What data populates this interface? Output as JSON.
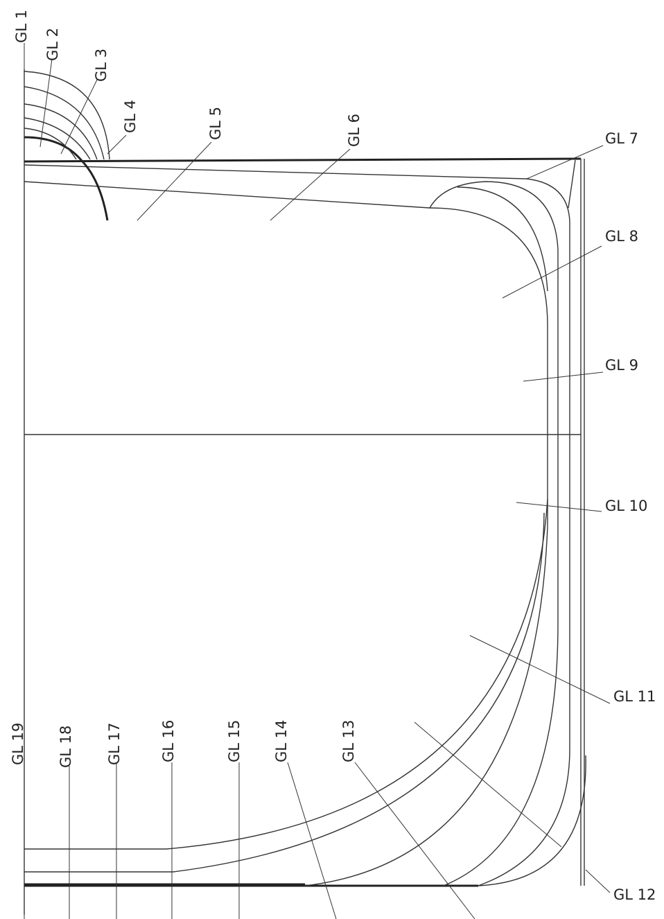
{
  "labels": [
    "GL 1",
    "GL 2",
    "GL 3",
    "GL 4",
    "GL 5",
    "GL 6",
    "GL 7",
    "GL 8",
    "GL 9",
    "GL 10",
    "GL 11",
    "GL 12",
    "GL 13",
    "GL 14",
    "GL 15",
    "GL 16",
    "GL 17",
    "GL 18",
    "GL 19"
  ]
}
